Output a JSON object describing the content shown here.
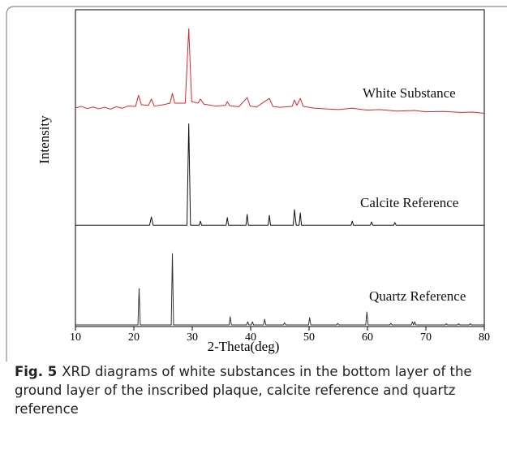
{
  "chart_data": {
    "type": "line",
    "x_label": "2-Theta(deg)",
    "y_label": "Intensity",
    "xlim": [
      10,
      80
    ],
    "xticks": [
      10,
      20,
      30,
      40,
      50,
      60,
      70,
      80
    ],
    "ylim": [
      0,
      100
    ],
    "series": [
      {
        "name": "White Substance",
        "color": "#e0262b",
        "x": [
          10,
          11,
          12,
          13,
          14,
          15,
          16,
          17,
          18,
          19,
          20.3,
          20.8,
          21.3,
          22.5,
          23,
          23.5,
          25,
          26.2,
          26.6,
          27,
          28.8,
          29.4,
          29.9,
          31,
          31.4,
          32,
          34,
          35.7,
          36,
          36.4,
          38,
          39.4,
          39.9,
          41,
          43.2,
          43.8,
          45,
          47.1,
          47.5,
          47.9,
          48.5,
          49,
          51,
          53,
          55,
          57.4,
          60,
          62,
          65,
          68,
          70,
          73,
          76,
          78,
          80
        ],
        "values": [
          69,
          69.5,
          68.8,
          69.3,
          68.7,
          69.2,
          68.6,
          69.4,
          68.9,
          69.6,
          69.5,
          73,
          70,
          69.8,
          71.8,
          69.6,
          70,
          70.5,
          73.6,
          70.5,
          70.5,
          94,
          71,
          70.5,
          71.8,
          70.2,
          69.6,
          69.8,
          71,
          69.7,
          69.4,
          72.3,
          69.6,
          69.3,
          72,
          69.5,
          69.2,
          69.5,
          71.5,
          69.8,
          72,
          69.5,
          68.9,
          68.7,
          68.5,
          68.9,
          68.3,
          68.5,
          68,
          68.2,
          67.8,
          67.9,
          67.6,
          67.7,
          67.3
        ]
      },
      {
        "name": "Calcite Reference",
        "color": "#111111",
        "x": [
          10,
          22.7,
          23,
          23.3,
          29.1,
          29.4,
          29.7,
          31.2,
          31.4,
          31.6,
          35.8,
          36,
          36.2,
          39.2,
          39.4,
          39.6,
          43,
          43.2,
          43.4,
          47.3,
          47.5,
          47.8,
          48.3,
          48.5,
          48.7,
          57.2,
          57.4,
          57.6,
          60.5,
          60.7,
          60.9,
          64.5,
          64.7,
          64.9,
          80
        ],
        "values": [
          32,
          32,
          34.6,
          32,
          32,
          64,
          32,
          32,
          33.3,
          32,
          32,
          34.4,
          32,
          32,
          35.4,
          32,
          32,
          35.1,
          32,
          32,
          36.9,
          32,
          32,
          35.9,
          32,
          32,
          33.3,
          32,
          32,
          33,
          32,
          32,
          32.8,
          32,
          32
        ]
      },
      {
        "name": "Quartz Reference",
        "color": "#333333",
        "x": [
          10,
          20.7,
          20.9,
          21.1,
          26.4,
          26.6,
          26.8,
          36.3,
          36.5,
          36.7,
          39.3,
          39.5,
          39.7,
          40.1,
          40.3,
          40.5,
          42.2,
          42.4,
          42.6,
          45.6,
          45.8,
          46,
          49.9,
          50.1,
          50.3,
          54.7,
          54.9,
          55.1,
          59.7,
          59.9,
          60.1,
          63.8,
          64,
          64.2,
          67.5,
          67.7,
          67.9,
          68.1,
          68.3,
          73.3,
          73.5,
          73.7,
          75.4,
          75.6,
          75.8,
          77.4,
          77.6,
          77.8,
          80
        ],
        "values": [
          0.5,
          0.5,
          12,
          0.5,
          0.5,
          23,
          0.5,
          0.5,
          3.1,
          0.5,
          0.5,
          1.5,
          0.5,
          0.5,
          1.5,
          0.5,
          0.5,
          2.3,
          0.5,
          0.5,
          1.2,
          0.5,
          0.5,
          2.8,
          0.5,
          0.5,
          1,
          0.5,
          0.5,
          4.6,
          0.5,
          0.5,
          1,
          0.5,
          0.5,
          1.5,
          0.5,
          1.5,
          0.5,
          0.5,
          0.9,
          0.5,
          0.5,
          0.9,
          0.5,
          0.5,
          0.9,
          0.5,
          0.5
        ]
      }
    ]
  },
  "caption": {
    "label": "Fig. 5",
    "text": "XRD diagrams of white substances in the bottom layer of the ground layer of the inscribed plaque, calcite reference and quartz reference"
  }
}
